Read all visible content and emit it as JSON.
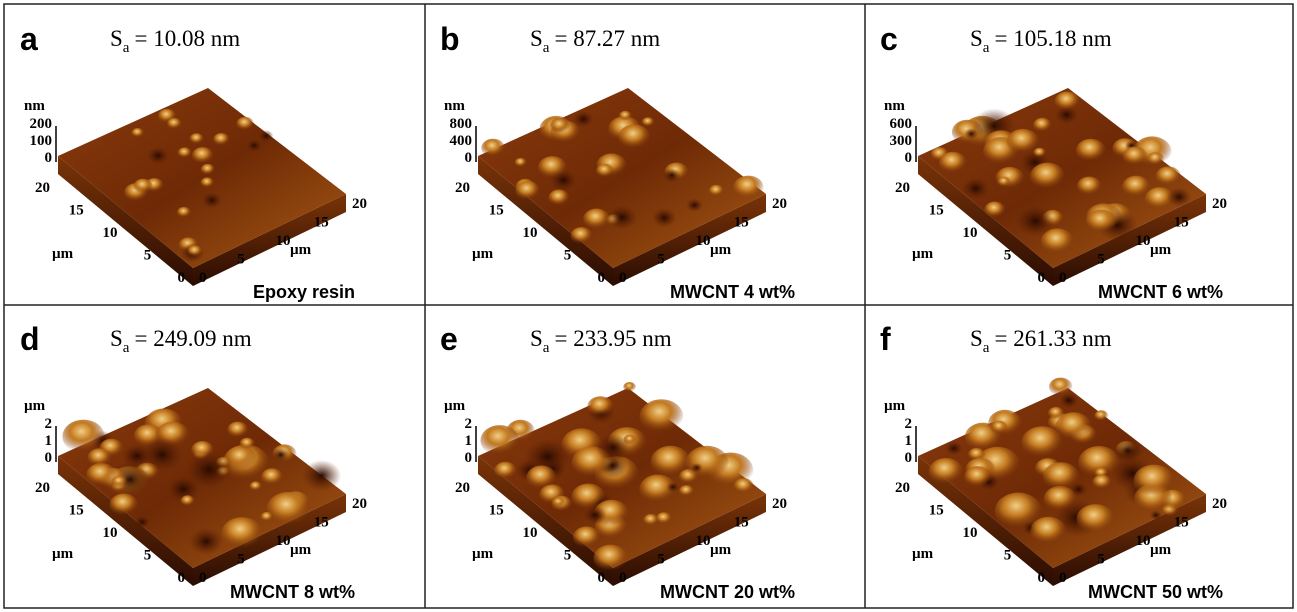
{
  "panels": [
    {
      "letter": "a",
      "sa_symbol": "S",
      "sa_subscript": "a",
      "sa_value": "= 10.08 nm",
      "z_unit": "nm",
      "z_ticks": [
        "200",
        "100",
        "0"
      ],
      "y_ticks": [
        "20",
        "15",
        "10",
        "5",
        "0"
      ],
      "x_ticks": [
        "0",
        "5",
        "10",
        "15",
        "20"
      ],
      "y_unit": "µm",
      "x_unit": "µm",
      "caption": "Epoxy resin"
    },
    {
      "letter": "b",
      "sa_symbol": "S",
      "sa_subscript": "a",
      "sa_value": "= 87.27 nm",
      "z_unit": "nm",
      "z_ticks": [
        "800",
        "400",
        "0"
      ],
      "y_ticks": [
        "20",
        "15",
        "10",
        "5",
        "0"
      ],
      "x_ticks": [
        "0",
        "5",
        "10",
        "15",
        "20"
      ],
      "y_unit": "µm",
      "x_unit": "µm",
      "caption": "MWCNT 4 wt%"
    },
    {
      "letter": "c",
      "sa_symbol": "S",
      "sa_subscript": "a",
      "sa_value": "= 105.18 nm",
      "z_unit": "nm",
      "z_ticks": [
        "600",
        "300",
        "0"
      ],
      "y_ticks": [
        "20",
        "15",
        "10",
        "5",
        "0"
      ],
      "x_ticks": [
        "0",
        "5",
        "10",
        "15",
        "20"
      ],
      "y_unit": "µm",
      "x_unit": "µm",
      "caption": "MWCNT 6 wt%"
    },
    {
      "letter": "d",
      "sa_symbol": "S",
      "sa_subscript": "a",
      "sa_value": "= 249.09 nm",
      "z_unit": "µm",
      "z_ticks": [
        "2",
        "1",
        "0"
      ],
      "y_ticks": [
        "20",
        "15",
        "10",
        "5",
        "0"
      ],
      "x_ticks": [
        "0",
        "5",
        "10",
        "15",
        "20"
      ],
      "y_unit": "µm",
      "x_unit": "µm",
      "caption": "MWCNT 8 wt%"
    },
    {
      "letter": "e",
      "sa_symbol": "S",
      "sa_subscript": "a",
      "sa_value": "= 233.95 nm",
      "z_unit": "µm",
      "z_ticks": [
        "2",
        "1",
        "0"
      ],
      "y_ticks": [
        "20",
        "15",
        "10",
        "5",
        "0"
      ],
      "x_ticks": [
        "0",
        "5",
        "10",
        "15",
        "20"
      ],
      "y_unit": "µm",
      "x_unit": "µm",
      "caption": "MWCNT 20 wt%"
    },
    {
      "letter": "f",
      "sa_symbol": "S",
      "sa_subscript": "a",
      "sa_value": "= 261.33 nm",
      "z_unit": "µm",
      "z_ticks": [
        "2",
        "1",
        "0"
      ],
      "y_ticks": [
        "20",
        "15",
        "10",
        "5",
        "0"
      ],
      "x_ticks": [
        "0",
        "5",
        "10",
        "15",
        "20"
      ],
      "y_unit": "µm",
      "x_unit": "µm",
      "caption": "MWCNT 50 wt%"
    }
  ]
}
